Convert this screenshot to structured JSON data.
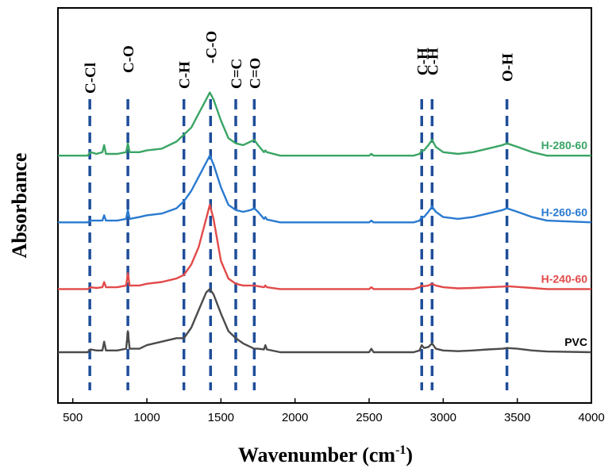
{
  "chart_data": {
    "type": "line",
    "title": "",
    "xlabel": "Wavenumber (cm",
    "xlabel_sup": "-1",
    "xlabel_close": ")",
    "ylabel": "Absorbance",
    "xlim": [
      400,
      4000
    ],
    "xticks": [
      500,
      1000,
      1500,
      2000,
      2500,
      3000,
      3500,
      4000
    ],
    "y_ticks_shown": false,
    "grid": false,
    "series": [
      {
        "name": "H-280-60",
        "color": "#3aa565",
        "points": [
          [
            400,
            0.56
          ],
          [
            600,
            0.56
          ],
          [
            620,
            0.57
          ],
          [
            660,
            0.565
          ],
          [
            700,
            0.57
          ],
          [
            712,
            0.59
          ],
          [
            724,
            0.565
          ],
          [
            800,
            0.565
          ],
          [
            860,
            0.57
          ],
          [
            872,
            0.595
          ],
          [
            884,
            0.57
          ],
          [
            950,
            0.57
          ],
          [
            1000,
            0.575
          ],
          [
            1100,
            0.58
          ],
          [
            1200,
            0.6
          ],
          [
            1250,
            0.62
          ],
          [
            1300,
            0.64
          ],
          [
            1350,
            0.68
          ],
          [
            1400,
            0.72
          ],
          [
            1425,
            0.74
          ],
          [
            1450,
            0.72
          ],
          [
            1500,
            0.66
          ],
          [
            1550,
            0.61
          ],
          [
            1600,
            0.595
          ],
          [
            1650,
            0.59
          ],
          [
            1700,
            0.6
          ],
          [
            1725,
            0.605
          ],
          [
            1750,
            0.59
          ],
          [
            1790,
            0.57
          ],
          [
            1800,
            0.575
          ],
          [
            1810,
            0.57
          ],
          [
            1900,
            0.56
          ],
          [
            2500,
            0.56
          ],
          [
            2515,
            0.565
          ],
          [
            2530,
            0.56
          ],
          [
            2800,
            0.56
          ],
          [
            2840,
            0.565
          ],
          [
            2855,
            0.575
          ],
          [
            2870,
            0.575
          ],
          [
            2900,
            0.59
          ],
          [
            2925,
            0.605
          ],
          [
            2950,
            0.585
          ],
          [
            3000,
            0.57
          ],
          [
            3100,
            0.565
          ],
          [
            3200,
            0.57
          ],
          [
            3300,
            0.58
          ],
          [
            3400,
            0.59
          ],
          [
            3430,
            0.595
          ],
          [
            3500,
            0.585
          ],
          [
            3600,
            0.57
          ],
          [
            3700,
            0.56
          ],
          [
            4000,
            0.56
          ]
        ]
      },
      {
        "name": "H-260-60",
        "color": "#2a7ad0",
        "points": [
          [
            400,
            0.37
          ],
          [
            600,
            0.37
          ],
          [
            620,
            0.375
          ],
          [
            660,
            0.375
          ],
          [
            700,
            0.375
          ],
          [
            712,
            0.39
          ],
          [
            724,
            0.375
          ],
          [
            800,
            0.375
          ],
          [
            860,
            0.38
          ],
          [
            872,
            0.405
          ],
          [
            884,
            0.38
          ],
          [
            950,
            0.385
          ],
          [
            1000,
            0.39
          ],
          [
            1100,
            0.395
          ],
          [
            1200,
            0.41
          ],
          [
            1250,
            0.43
          ],
          [
            1300,
            0.46
          ],
          [
            1350,
            0.5
          ],
          [
            1400,
            0.54
          ],
          [
            1425,
            0.56
          ],
          [
            1450,
            0.535
          ],
          [
            1500,
            0.47
          ],
          [
            1550,
            0.42
          ],
          [
            1600,
            0.405
          ],
          [
            1650,
            0.4
          ],
          [
            1700,
            0.405
          ],
          [
            1725,
            0.41
          ],
          [
            1750,
            0.4
          ],
          [
            1790,
            0.38
          ],
          [
            1800,
            0.385
          ],
          [
            1810,
            0.378
          ],
          [
            1900,
            0.37
          ],
          [
            2500,
            0.37
          ],
          [
            2515,
            0.375
          ],
          [
            2530,
            0.37
          ],
          [
            2800,
            0.37
          ],
          [
            2840,
            0.375
          ],
          [
            2855,
            0.385
          ],
          [
            2870,
            0.385
          ],
          [
            2900,
            0.4
          ],
          [
            2925,
            0.415
          ],
          [
            2950,
            0.4
          ],
          [
            3000,
            0.385
          ],
          [
            3100,
            0.38
          ],
          [
            3200,
            0.385
          ],
          [
            3300,
            0.395
          ],
          [
            3400,
            0.405
          ],
          [
            3430,
            0.41
          ],
          [
            3500,
            0.4
          ],
          [
            3600,
            0.385
          ],
          [
            3700,
            0.375
          ],
          [
            4000,
            0.37
          ]
        ]
      },
      {
        "name": "H-240-60",
        "color": "#e24a4a",
        "points": [
          [
            400,
            0.18
          ],
          [
            600,
            0.18
          ],
          [
            620,
            0.185
          ],
          [
            660,
            0.183
          ],
          [
            700,
            0.185
          ],
          [
            712,
            0.2
          ],
          [
            724,
            0.185
          ],
          [
            800,
            0.185
          ],
          [
            860,
            0.19
          ],
          [
            872,
            0.225
          ],
          [
            884,
            0.19
          ],
          [
            950,
            0.19
          ],
          [
            1000,
            0.195
          ],
          [
            1100,
            0.2
          ],
          [
            1200,
            0.21
          ],
          [
            1250,
            0.22
          ],
          [
            1300,
            0.25
          ],
          [
            1350,
            0.3
          ],
          [
            1400,
            0.38
          ],
          [
            1425,
            0.42
          ],
          [
            1450,
            0.38
          ],
          [
            1500,
            0.26
          ],
          [
            1550,
            0.21
          ],
          [
            1600,
            0.195
          ],
          [
            1650,
            0.19
          ],
          [
            1700,
            0.19
          ],
          [
            1725,
            0.19
          ],
          [
            1750,
            0.188
          ],
          [
            1790,
            0.185
          ],
          [
            1800,
            0.19
          ],
          [
            1810,
            0.185
          ],
          [
            1900,
            0.18
          ],
          [
            2500,
            0.18
          ],
          [
            2515,
            0.185
          ],
          [
            2530,
            0.18
          ],
          [
            2800,
            0.18
          ],
          [
            2840,
            0.185
          ],
          [
            2855,
            0.19
          ],
          [
            2870,
            0.188
          ],
          [
            2900,
            0.19
          ],
          [
            2925,
            0.195
          ],
          [
            2950,
            0.19
          ],
          [
            3000,
            0.185
          ],
          [
            3100,
            0.182
          ],
          [
            3200,
            0.183
          ],
          [
            3300,
            0.185
          ],
          [
            3400,
            0.187
          ],
          [
            3430,
            0.188
          ],
          [
            3500,
            0.186
          ],
          [
            3600,
            0.183
          ],
          [
            3700,
            0.18
          ],
          [
            4000,
            0.18
          ]
        ]
      },
      {
        "name": "PVC",
        "color": "#4b4b4b",
        "points": [
          [
            400,
            0.0
          ],
          [
            600,
            0.0
          ],
          [
            620,
            0.008
          ],
          [
            660,
            0.005
          ],
          [
            700,
            0.005
          ],
          [
            712,
            0.03
          ],
          [
            724,
            0.005
          ],
          [
            800,
            0.005
          ],
          [
            860,
            0.01
          ],
          [
            872,
            0.06
          ],
          [
            884,
            0.01
          ],
          [
            950,
            0.01
          ],
          [
            1000,
            0.02
          ],
          [
            1100,
            0.03
          ],
          [
            1200,
            0.04
          ],
          [
            1250,
            0.04
          ],
          [
            1300,
            0.07
          ],
          [
            1350,
            0.12
          ],
          [
            1400,
            0.17
          ],
          [
            1425,
            0.18
          ],
          [
            1450,
            0.165
          ],
          [
            1500,
            0.11
          ],
          [
            1550,
            0.06
          ],
          [
            1600,
            0.04
          ],
          [
            1650,
            0.025
          ],
          [
            1700,
            0.015
          ],
          [
            1725,
            0.01
          ],
          [
            1750,
            0.01
          ],
          [
            1790,
            0.008
          ],
          [
            1800,
            0.02
          ],
          [
            1810,
            0.008
          ],
          [
            1900,
            0.0
          ],
          [
            2500,
            0.0
          ],
          [
            2515,
            0.01
          ],
          [
            2530,
            0.0
          ],
          [
            2800,
            0.0
          ],
          [
            2840,
            0.005
          ],
          [
            2855,
            0.02
          ],
          [
            2870,
            0.012
          ],
          [
            2900,
            0.015
          ],
          [
            2925,
            0.025
          ],
          [
            2950,
            0.01
          ],
          [
            3000,
            0.005
          ],
          [
            3100,
            0.003
          ],
          [
            3200,
            0.005
          ],
          [
            3300,
            0.008
          ],
          [
            3400,
            0.01
          ],
          [
            3430,
            0.012
          ],
          [
            3500,
            0.01
          ],
          [
            3600,
            0.005
          ],
          [
            3700,
            0.002
          ],
          [
            4000,
            0.0
          ]
        ]
      }
    ],
    "annotations": [
      {
        "label": "C-Cl",
        "x": 615
      },
      {
        "label": "C-O",
        "x": 872
      },
      {
        "label": "C-H",
        "x": 1250
      },
      {
        "label": "-C-O",
        "x": 1430
      },
      {
        "label": "C=C",
        "x": 1600
      },
      {
        "label": "C=O",
        "x": 1725
      },
      {
        "label": "C-H",
        "x": 2855
      },
      {
        "label": "C-H",
        "x": 2925
      },
      {
        "label": "O-H",
        "x": 3430
      }
    ],
    "annotation_line_color": "#1f4e99",
    "legend_placement": "right, beside each curve"
  }
}
